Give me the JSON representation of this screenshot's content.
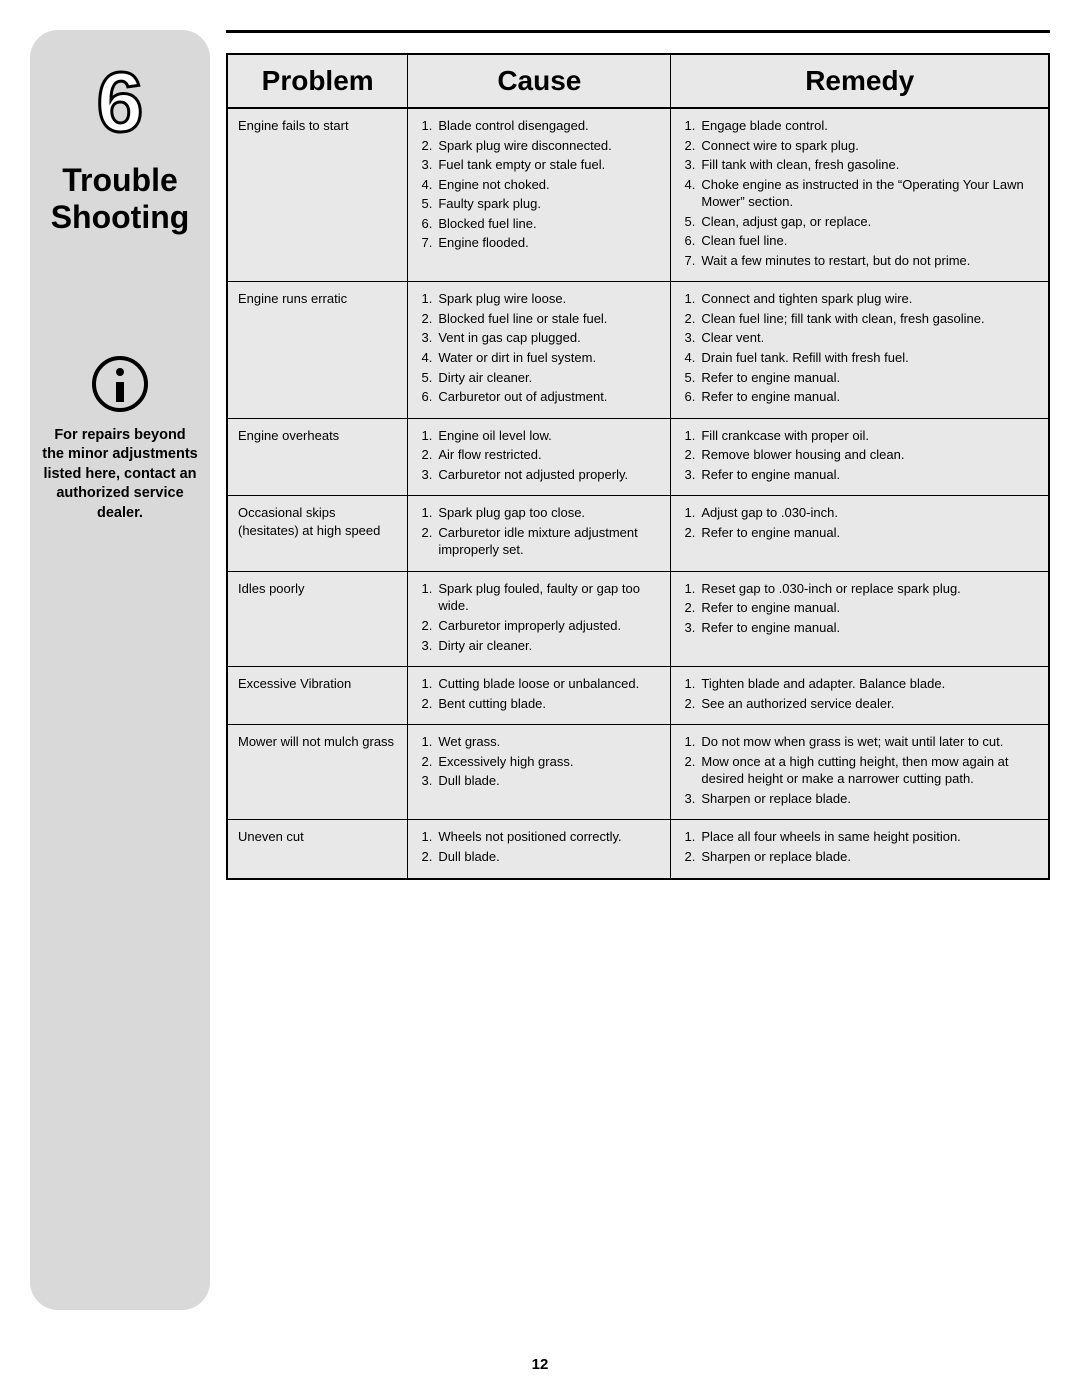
{
  "sidebar": {
    "section_number": "6",
    "title_line1": "Trouble",
    "title_line2": "Shooting",
    "note": "For repairs beyond the minor adjustments listed here, contact an authorized service dealer."
  },
  "table": {
    "headers": {
      "problem": "Problem",
      "cause": "Cause",
      "remedy": "Remedy"
    },
    "rows": [
      {
        "problem": "Engine fails to start",
        "causes": [
          "Blade control disengaged.",
          "Spark plug wire disconnected.",
          "Fuel tank empty or stale fuel.",
          "Engine not choked.",
          "Faulty spark plug.",
          "Blocked fuel line.",
          "Engine flooded."
        ],
        "remedies": [
          "Engage blade control.",
          "Connect wire to spark plug.",
          "Fill tank with clean, fresh gasoline.",
          "Choke engine as instructed in the “Operating Your Lawn Mower” section.",
          "Clean, adjust gap, or replace.",
          "Clean fuel line.",
          "Wait a few minutes to restart, but do not prime."
        ]
      },
      {
        "problem": "Engine runs erratic",
        "causes": [
          "Spark plug wire loose.",
          "Blocked fuel line or stale fuel.",
          "Vent in gas cap plugged.",
          "Water or dirt in fuel system.",
          "Dirty air cleaner.",
          "Carburetor out of adjustment."
        ],
        "remedies": [
          "Connect and tighten spark plug wire.",
          "Clean fuel line; fill tank with clean, fresh gasoline.",
          "Clear vent.",
          "Drain fuel tank. Refill with fresh fuel.",
          "Refer to engine manual.",
          "Refer to engine manual."
        ]
      },
      {
        "problem": "Engine overheats",
        "causes": [
          "Engine oil level low.",
          "Air flow restricted.",
          "Carburetor not adjusted properly."
        ],
        "remedies": [
          "Fill crankcase with proper oil.",
          "Remove blower housing and clean.",
          "Refer to engine manual."
        ]
      },
      {
        "problem": "Occasional skips (hesitates) at high speed",
        "causes": [
          "Spark plug gap too close.",
          "Carburetor idle mixture adjustment improperly set."
        ],
        "remedies": [
          "Adjust gap to .030-inch.",
          "Refer to engine manual."
        ]
      },
      {
        "problem": "Idles poorly",
        "causes": [
          "Spark plug fouled, faulty or gap too wide.",
          "Carburetor improperly adjusted.",
          "Dirty air cleaner."
        ],
        "remedies": [
          "Reset gap to .030-inch or replace spark plug.",
          "Refer to engine manual.",
          "Refer to engine manual."
        ]
      },
      {
        "problem": "Excessive Vibration",
        "causes": [
          "Cutting blade loose or unbalanced.",
          "Bent cutting blade."
        ],
        "remedies": [
          "Tighten blade and adapter. Balance blade.",
          "See an authorized service dealer."
        ]
      },
      {
        "problem": "Mower will not mulch grass",
        "causes": [
          "Wet grass.",
          "Excessively high grass.",
          "Dull blade."
        ],
        "remedies": [
          "Do not mow when grass is wet; wait until later to cut.",
          "Mow once at a high cutting height, then mow again at desired height or make a narrower cutting path.",
          "Sharpen or replace blade."
        ]
      },
      {
        "problem": "Uneven cut",
        "causes": [
          "Wheels not positioned correctly.",
          "Dull blade."
        ],
        "remedies": [
          "Place all four wheels in same height position.",
          "Sharpen or replace blade."
        ]
      }
    ]
  },
  "page_number": "12",
  "colors": {
    "sidebar_bg": "#d9d9d9",
    "table_bg": "#e8e8e8",
    "border": "#000000",
    "text": "#000000"
  }
}
